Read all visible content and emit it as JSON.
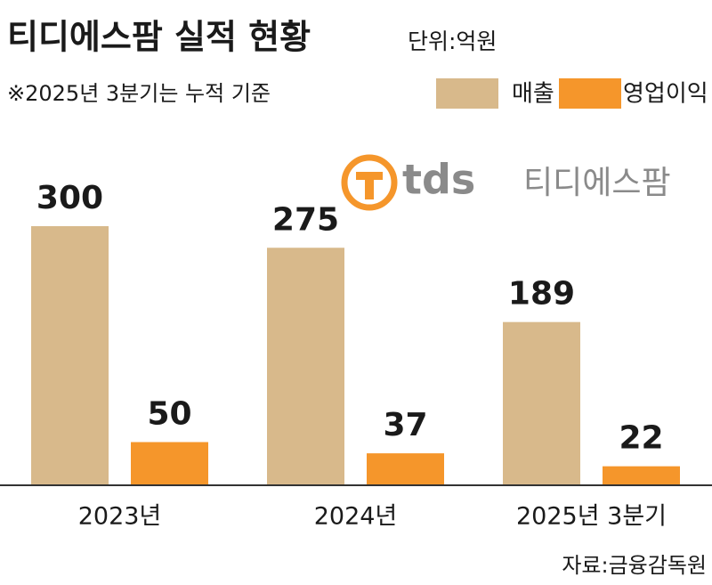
{
  "chart_data": {
    "type": "bar",
    "title": "티디에스팜 실적 현황",
    "subtitle": "단위:억원",
    "note": "※2025년 3분기는 누적 기준",
    "source": "자료:금융감독원",
    "logo": {
      "mark": "tds",
      "name": "티디에스팜"
    },
    "categories": [
      "2023년",
      "2024년",
      "2025년 3분기"
    ],
    "series": [
      {
        "name": "매출",
        "color": "#d8b98b",
        "values": [
          300,
          275,
          189
        ]
      },
      {
        "name": "영업이익",
        "color": "#f5962b",
        "values": [
          50,
          37,
          22
        ]
      }
    ],
    "ylim": [
      0,
      300
    ]
  }
}
